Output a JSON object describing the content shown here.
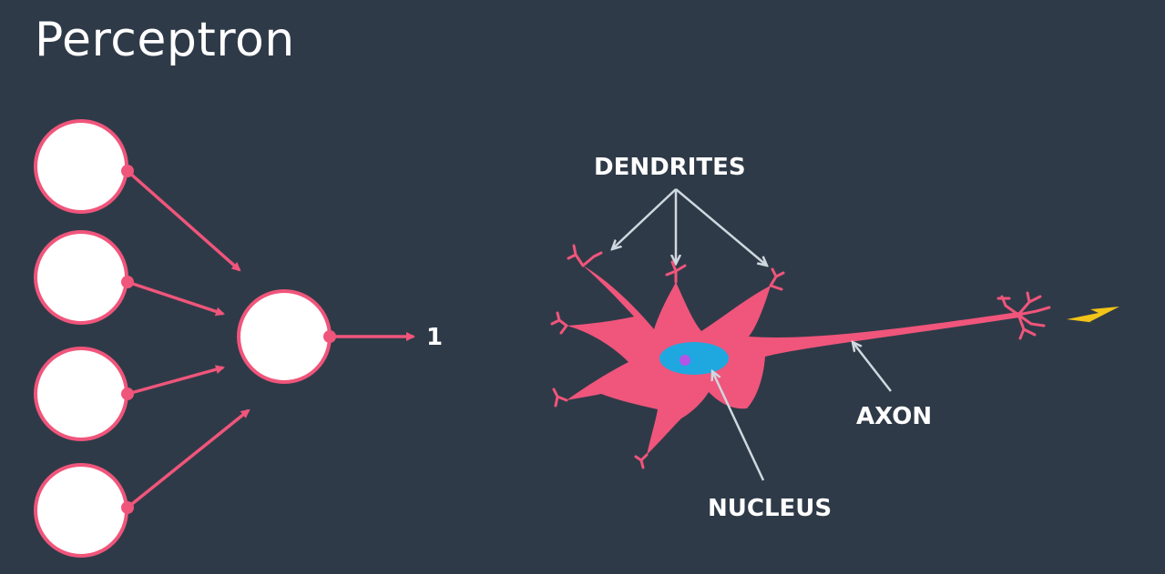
{
  "slide": {
    "title": "Perceptron"
  },
  "perceptron": {
    "output_label": "1"
  },
  "neuron": {
    "labels": {
      "dendrites": "DENDRITES",
      "axon": "AXON",
      "nucleus": "NUCLEUS"
    }
  },
  "colors": {
    "background": "#2f3a48",
    "accent": "#f0557b",
    "node_fill": "#ffffff",
    "nucleus": "#1fa8e0",
    "nucleolus": "#b455e8",
    "annotation_arrow": "#cfd8e0",
    "spark": "#f2c318"
  }
}
